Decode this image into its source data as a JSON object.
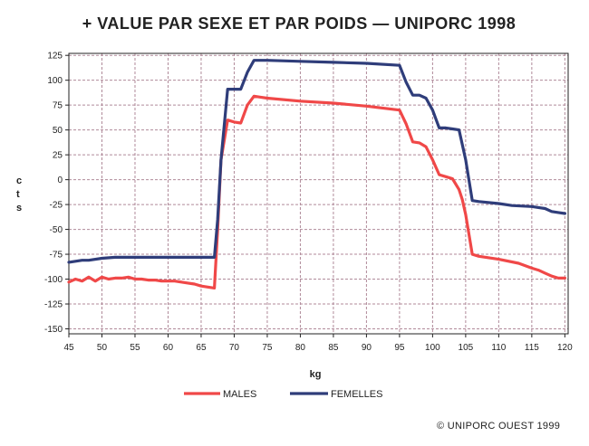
{
  "chart_data": {
    "type": "line",
    "title": "+ VALUE PAR SEXE ET PAR POIDS — UNIPORC 1998",
    "xlabel": "kg",
    "ylabel": "c t s",
    "xlim": [
      45,
      120.5
    ],
    "ylim": [
      -155,
      127
    ],
    "x_ticks": [
      45,
      50,
      55,
      60,
      65,
      70,
      75,
      80,
      85,
      90,
      95,
      100,
      105,
      110,
      115,
      120
    ],
    "y_ticks": [
      125,
      100,
      75,
      50,
      25,
      0,
      -25,
      -50,
      -75,
      -100,
      -125,
      -150
    ],
    "grid": true,
    "legend_position": "bottom",
    "series": [
      {
        "name": "MALES",
        "color": "#f04848",
        "points": [
          [
            45,
            -103
          ],
          [
            46,
            -100
          ],
          [
            47,
            -102
          ],
          [
            48,
            -98
          ],
          [
            49,
            -102
          ],
          [
            50,
            -98
          ],
          [
            51,
            -100
          ],
          [
            52,
            -99
          ],
          [
            53,
            -99
          ],
          [
            54,
            -98
          ],
          [
            55,
            -100
          ],
          [
            56,
            -100
          ],
          [
            57,
            -101
          ],
          [
            58,
            -101
          ],
          [
            59,
            -102
          ],
          [
            60,
            -102
          ],
          [
            61,
            -102
          ],
          [
            62,
            -103
          ],
          [
            63,
            -104
          ],
          [
            64,
            -105
          ],
          [
            65,
            -107
          ],
          [
            66,
            -108
          ],
          [
            67,
            -109
          ],
          [
            67.5,
            -50
          ],
          [
            68,
            20
          ],
          [
            69,
            60
          ],
          [
            70,
            58
          ],
          [
            71,
            57
          ],
          [
            72,
            75
          ],
          [
            73,
            84
          ],
          [
            74,
            83
          ],
          [
            75,
            82
          ],
          [
            80,
            79
          ],
          [
            85,
            77
          ],
          [
            90,
            74
          ],
          [
            95,
            70
          ],
          [
            96,
            56
          ],
          [
            97,
            38
          ],
          [
            98,
            37
          ],
          [
            99,
            33
          ],
          [
            100,
            20
          ],
          [
            101,
            5
          ],
          [
            102,
            3
          ],
          [
            103,
            1
          ],
          [
            104,
            -10
          ],
          [
            104.5,
            -20
          ],
          [
            105,
            -35
          ],
          [
            106,
            -75
          ],
          [
            107,
            -77
          ],
          [
            110,
            -80
          ],
          [
            113,
            -84
          ],
          [
            115,
            -89
          ],
          [
            116,
            -91
          ],
          [
            117,
            -94
          ],
          [
            118,
            -97
          ],
          [
            119,
            -99
          ],
          [
            120,
            -99
          ]
        ]
      },
      {
        "name": "FEMELLES",
        "color": "#2f3d7a",
        "points": [
          [
            45,
            -83
          ],
          [
            46,
            -82
          ],
          [
            47,
            -81
          ],
          [
            48,
            -81
          ],
          [
            50,
            -79
          ],
          [
            52,
            -78
          ],
          [
            55,
            -78
          ],
          [
            60,
            -78
          ],
          [
            65,
            -78
          ],
          [
            67,
            -78
          ],
          [
            67.5,
            -40
          ],
          [
            68,
            20
          ],
          [
            69,
            91
          ],
          [
            70,
            91
          ],
          [
            71,
            91
          ],
          [
            72,
            108
          ],
          [
            73,
            120
          ],
          [
            75,
            120
          ],
          [
            80,
            119
          ],
          [
            85,
            118
          ],
          [
            90,
            117
          ],
          [
            95,
            115
          ],
          [
            96,
            98
          ],
          [
            97,
            85
          ],
          [
            98,
            85
          ],
          [
            99,
            82
          ],
          [
            100,
            70
          ],
          [
            101,
            52
          ],
          [
            102,
            52
          ],
          [
            103,
            51
          ],
          [
            104,
            50
          ],
          [
            105,
            20
          ],
          [
            106,
            -21
          ],
          [
            107,
            -22
          ],
          [
            110,
            -24
          ],
          [
            112,
            -26
          ],
          [
            115,
            -27
          ],
          [
            116,
            -28
          ],
          [
            117,
            -29
          ],
          [
            118,
            -32
          ],
          [
            119,
            -33
          ],
          [
            120,
            -34
          ]
        ]
      }
    ]
  },
  "copyright": "© UNIPORC OUEST 1999"
}
